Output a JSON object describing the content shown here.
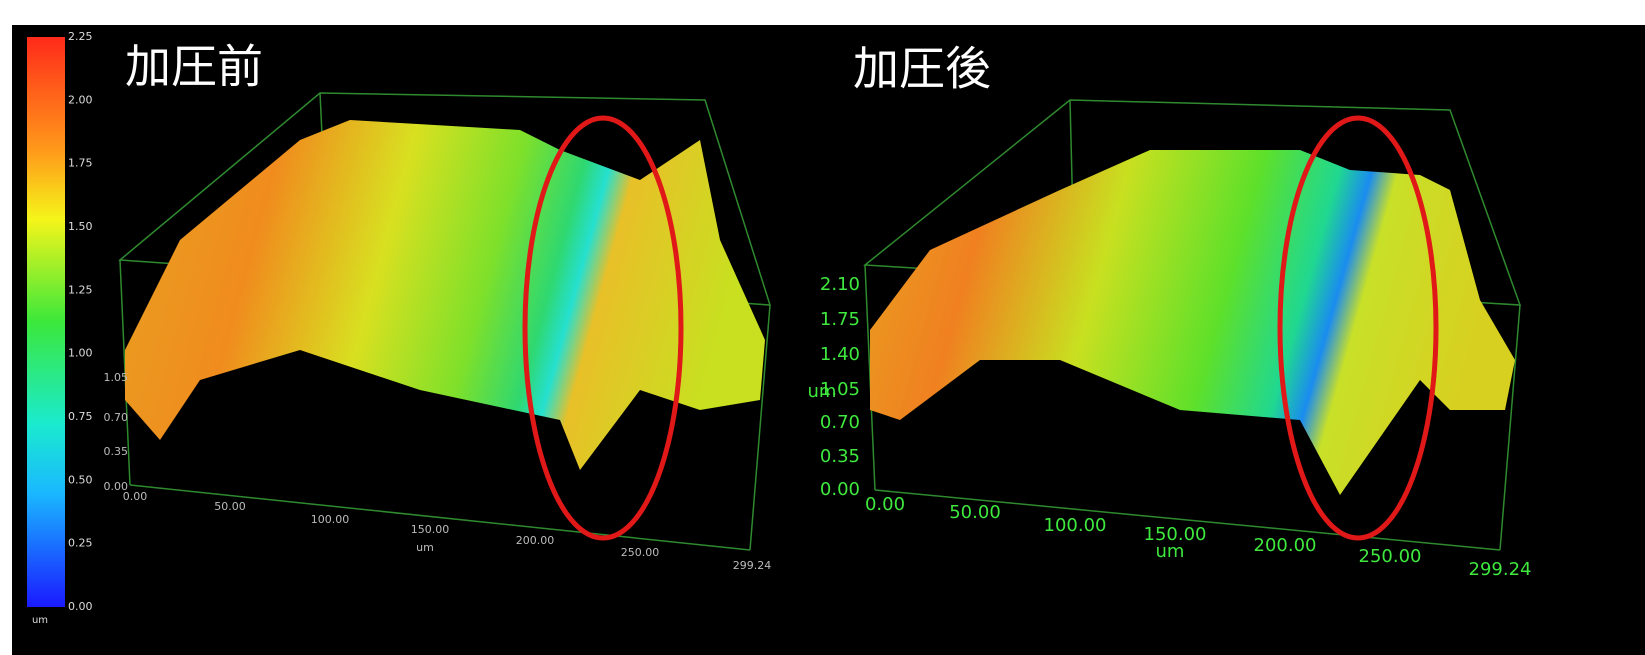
{
  "colorbar": {
    "ticks": [
      "2.25",
      "2.00",
      "1.75",
      "1.50",
      "1.25",
      "1.00",
      "0.75",
      "0.50",
      "0.25",
      "0.00"
    ],
    "unit": "um"
  },
  "panels": [
    {
      "title": "加圧前",
      "z_ticks": [
        "0.00",
        "0.35",
        "0.70",
        "1.05"
      ],
      "x_ticks": [
        "0.00",
        "50.00",
        "100.00",
        "150.00",
        "200.00",
        "250.00",
        "299.24"
      ],
      "x_unit": "um"
    },
    {
      "title": "加圧後",
      "z_ticks": [
        "0.00",
        "0.35",
        "0.70",
        "1.05",
        "1.40",
        "1.75",
        "2.10"
      ],
      "z_unit": "um",
      "x_ticks": [
        "0.00",
        "50.00",
        "100.00",
        "150.00",
        "200.00",
        "250.00",
        "299.24"
      ],
      "x_unit": "um"
    }
  ]
}
